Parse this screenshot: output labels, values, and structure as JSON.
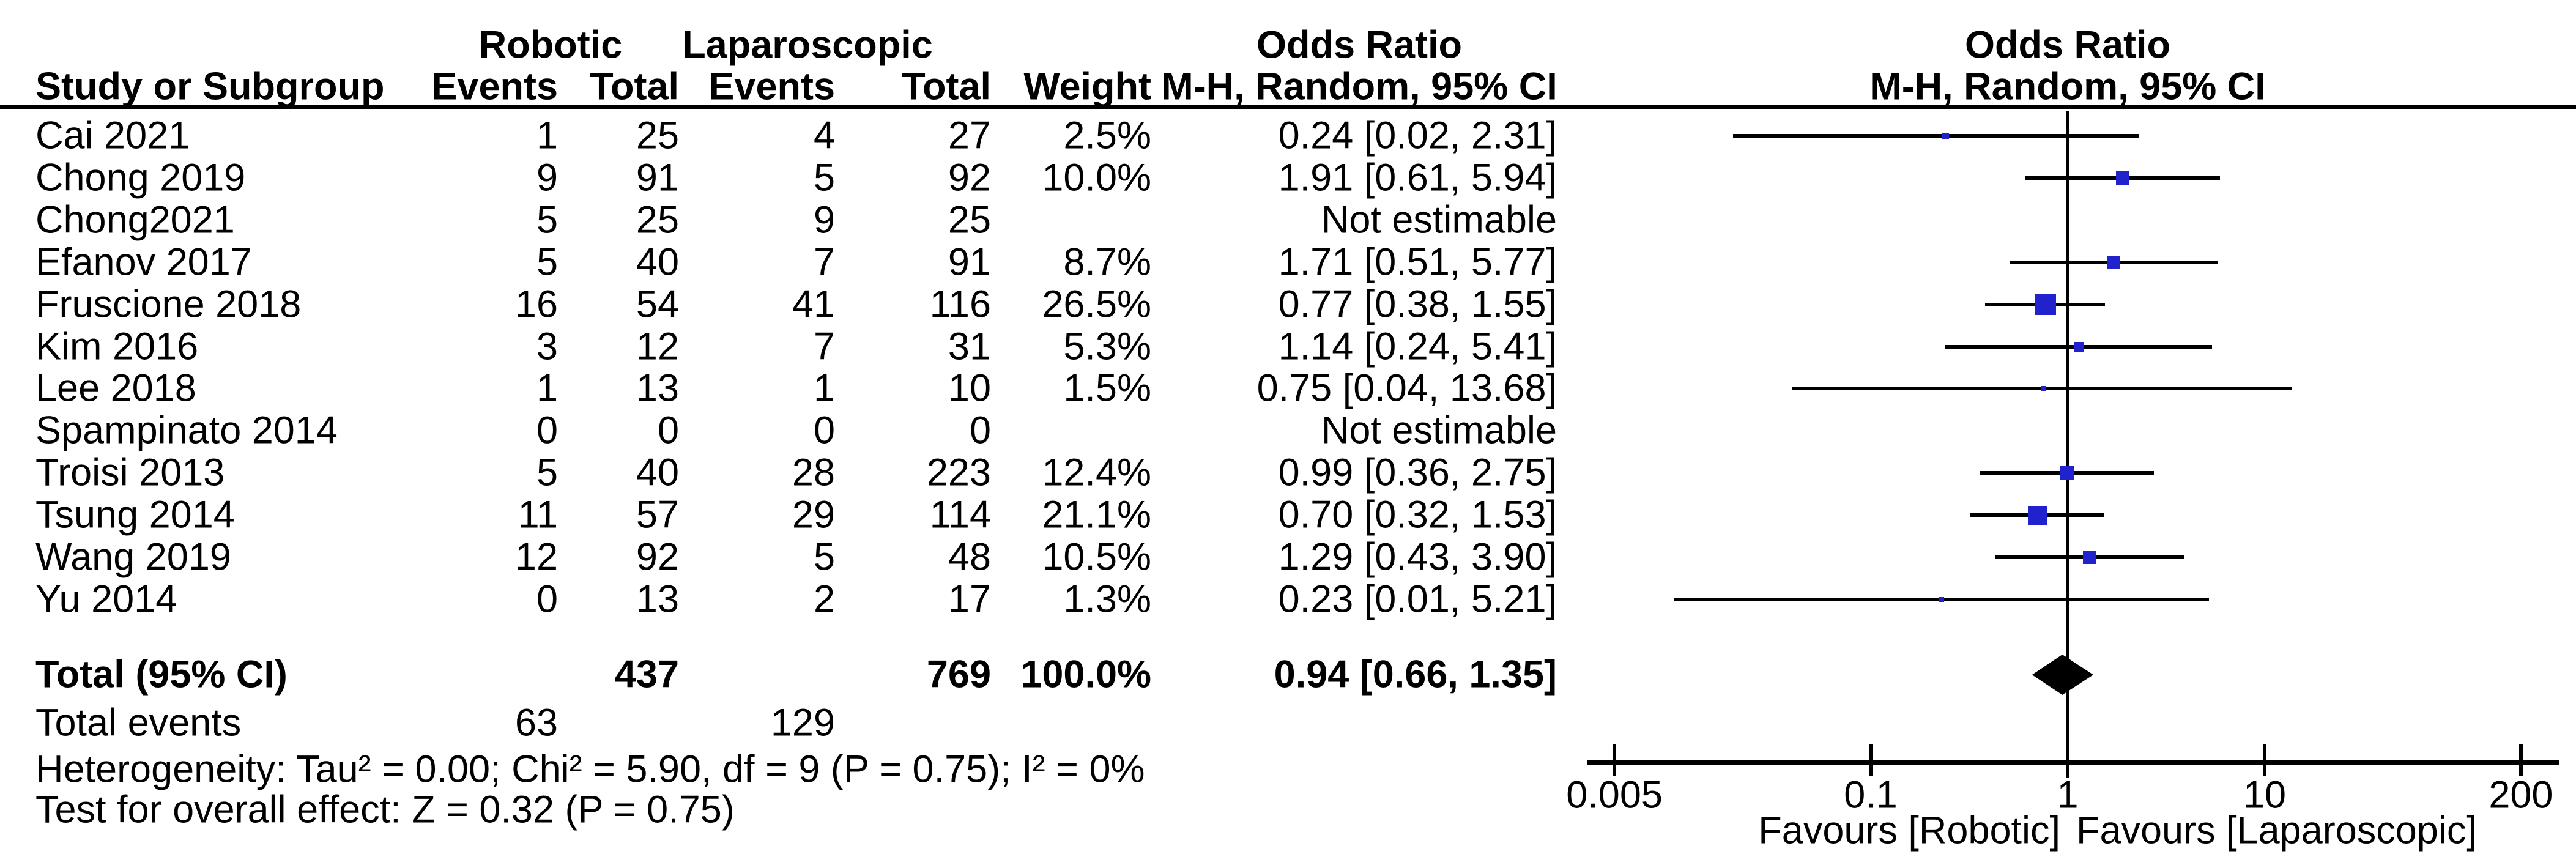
{
  "chart_data": {
    "type": "forest",
    "effect_measure": "Odds Ratio",
    "method": "M-H, Random, 95% CI",
    "headers": {
      "study": "Study or Subgroup",
      "group1": "Robotic",
      "group2": "Laparoscopic",
      "events1": "Events",
      "total1": "Total",
      "events2": "Events",
      "total2": "Total",
      "weight": "Weight",
      "or_title_left": "Odds Ratio",
      "or_sub_left": "M-H, Random, 95% CI",
      "or_title_right": "Odds Ratio",
      "or_sub_right": "M-H, Random, 95% CI"
    },
    "studies": [
      {
        "name": "Cai 2021",
        "events1": 1,
        "total1": 25,
        "events2": 4,
        "total2": 27,
        "weight": "2.5%",
        "weight_pct": 2.5,
        "ci_text": "0.24 [0.02, 2.31]",
        "or": 0.24,
        "lo": 0.02,
        "hi": 2.31
      },
      {
        "name": "Chong 2019",
        "events1": 9,
        "total1": 91,
        "events2": 5,
        "total2": 92,
        "weight": "10.0%",
        "weight_pct": 10.0,
        "ci_text": "1.91 [0.61, 5.94]",
        "or": 1.91,
        "lo": 0.61,
        "hi": 5.94
      },
      {
        "name": "Chong2021",
        "events1": 5,
        "total1": 25,
        "events2": 9,
        "total2": 25,
        "weight": "",
        "weight_pct": 0,
        "ci_text": "Not estimable",
        "or": null,
        "lo": null,
        "hi": null
      },
      {
        "name": "Efanov 2017",
        "events1": 5,
        "total1": 40,
        "events2": 7,
        "total2": 91,
        "weight": "8.7%",
        "weight_pct": 8.7,
        "ci_text": "1.71 [0.51, 5.77]",
        "or": 1.71,
        "lo": 0.51,
        "hi": 5.77
      },
      {
        "name": "Fruscione 2018",
        "events1": 16,
        "total1": 54,
        "events2": 41,
        "total2": 116,
        "weight": "26.5%",
        "weight_pct": 26.5,
        "ci_text": "0.77 [0.38, 1.55]",
        "or": 0.77,
        "lo": 0.38,
        "hi": 1.55
      },
      {
        "name": "Kim 2016",
        "events1": 3,
        "total1": 12,
        "events2": 7,
        "total2": 31,
        "weight": "5.3%",
        "weight_pct": 5.3,
        "ci_text": "1.14 [0.24, 5.41]",
        "or": 1.14,
        "lo": 0.24,
        "hi": 5.41
      },
      {
        "name": "Lee 2018",
        "events1": 1,
        "total1": 13,
        "events2": 1,
        "total2": 10,
        "weight": "1.5%",
        "weight_pct": 1.5,
        "ci_text": "0.75 [0.04, 13.68]",
        "or": 0.75,
        "lo": 0.04,
        "hi": 13.68
      },
      {
        "name": "Spampinato 2014",
        "events1": 0,
        "total1": 0,
        "events2": 0,
        "total2": 0,
        "weight": "",
        "weight_pct": 0,
        "ci_text": "Not estimable",
        "or": null,
        "lo": null,
        "hi": null
      },
      {
        "name": "Troisi 2013",
        "events1": 5,
        "total1": 40,
        "events2": 28,
        "total2": 223,
        "weight": "12.4%",
        "weight_pct": 12.4,
        "ci_text": "0.99 [0.36, 2.75]",
        "or": 0.99,
        "lo": 0.36,
        "hi": 2.75
      },
      {
        "name": "Tsung 2014",
        "events1": 11,
        "total1": 57,
        "events2": 29,
        "total2": 114,
        "weight": "21.1%",
        "weight_pct": 21.1,
        "ci_text": "0.70 [0.32, 1.53]",
        "or": 0.7,
        "lo": 0.32,
        "hi": 1.53
      },
      {
        "name": "Wang 2019",
        "events1": 12,
        "total1": 92,
        "events2": 5,
        "total2": 48,
        "weight": "10.5%",
        "weight_pct": 10.5,
        "ci_text": "1.29 [0.43, 3.90]",
        "or": 1.29,
        "lo": 0.43,
        "hi": 3.9
      },
      {
        "name": "Yu 2014",
        "events1": 0,
        "total1": 13,
        "events2": 2,
        "total2": 17,
        "weight": "1.3%",
        "weight_pct": 1.3,
        "ci_text": "0.23 [0.01, 5.21]",
        "or": 0.23,
        "lo": 0.01,
        "hi": 5.21
      }
    ],
    "total_row": {
      "label": "Total (95% CI)",
      "total1": 437,
      "total2": 769,
      "weight": "100.0%",
      "ci_text": "0.94 [0.66, 1.35]",
      "or": 0.94,
      "lo": 0.66,
      "hi": 1.35
    },
    "total_events_row": {
      "label": "Total events",
      "events1": 63,
      "events2": 129
    },
    "heterogeneity": "Heterogeneity: Tau² = 0.00; Chi² = 5.90, df = 9 (P = 0.75); I² = 0%",
    "overall_effect": "Test for overall effect: Z = 0.32 (P = 0.75)",
    "axis": {
      "scale": "log",
      "ticks": [
        0.005,
        0.1,
        1,
        10,
        200
      ],
      "tick_labels": [
        "0.005",
        "0.1",
        "1",
        "10",
        "200"
      ],
      "favours_left": "Favours [Robotic]",
      "favours_right": "Favours [Laparoscopic]"
    },
    "colors": {
      "marker": "#2121CE",
      "diamond": "#000000",
      "line": "#000000"
    }
  }
}
